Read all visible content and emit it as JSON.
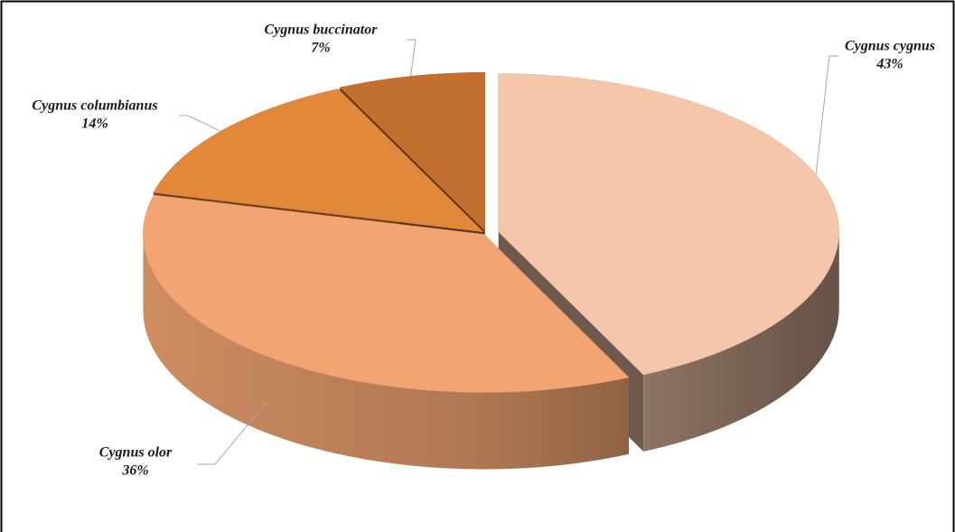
{
  "chart_data": {
    "type": "pie3d",
    "categories": [
      "Cygnus cygnus",
      "Cygnus olor",
      "Cygnus columbianus",
      "Cygnus buccinator"
    ],
    "values": [
      43,
      36,
      14,
      7
    ],
    "value_labels": [
      "43%",
      "36%",
      "14%",
      "7%"
    ],
    "colors": [
      "#f6c6ab",
      "#f2a572",
      "#e1883b",
      "#c1702f"
    ]
  }
}
